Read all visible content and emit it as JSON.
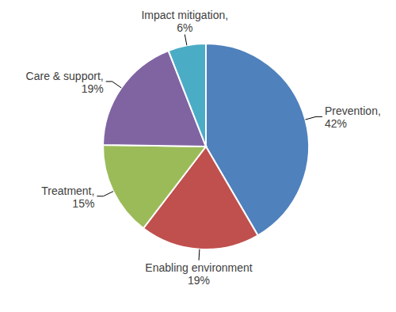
{
  "chart_data": {
    "type": "pie",
    "categories": [
      "Prevention,",
      "Enabling environment",
      "Treatment,",
      "Care & support,",
      "Impact mitigation,"
    ],
    "values": [
      42,
      19,
      15,
      19,
      6
    ],
    "value_labels": [
      "42%",
      "19%",
      "15%",
      "19%",
      "6%"
    ],
    "colors": [
      "#4f81bd",
      "#c0504d",
      "#9bbb59",
      "#8064a2",
      "#4bacc6"
    ],
    "data_labels": true
  }
}
